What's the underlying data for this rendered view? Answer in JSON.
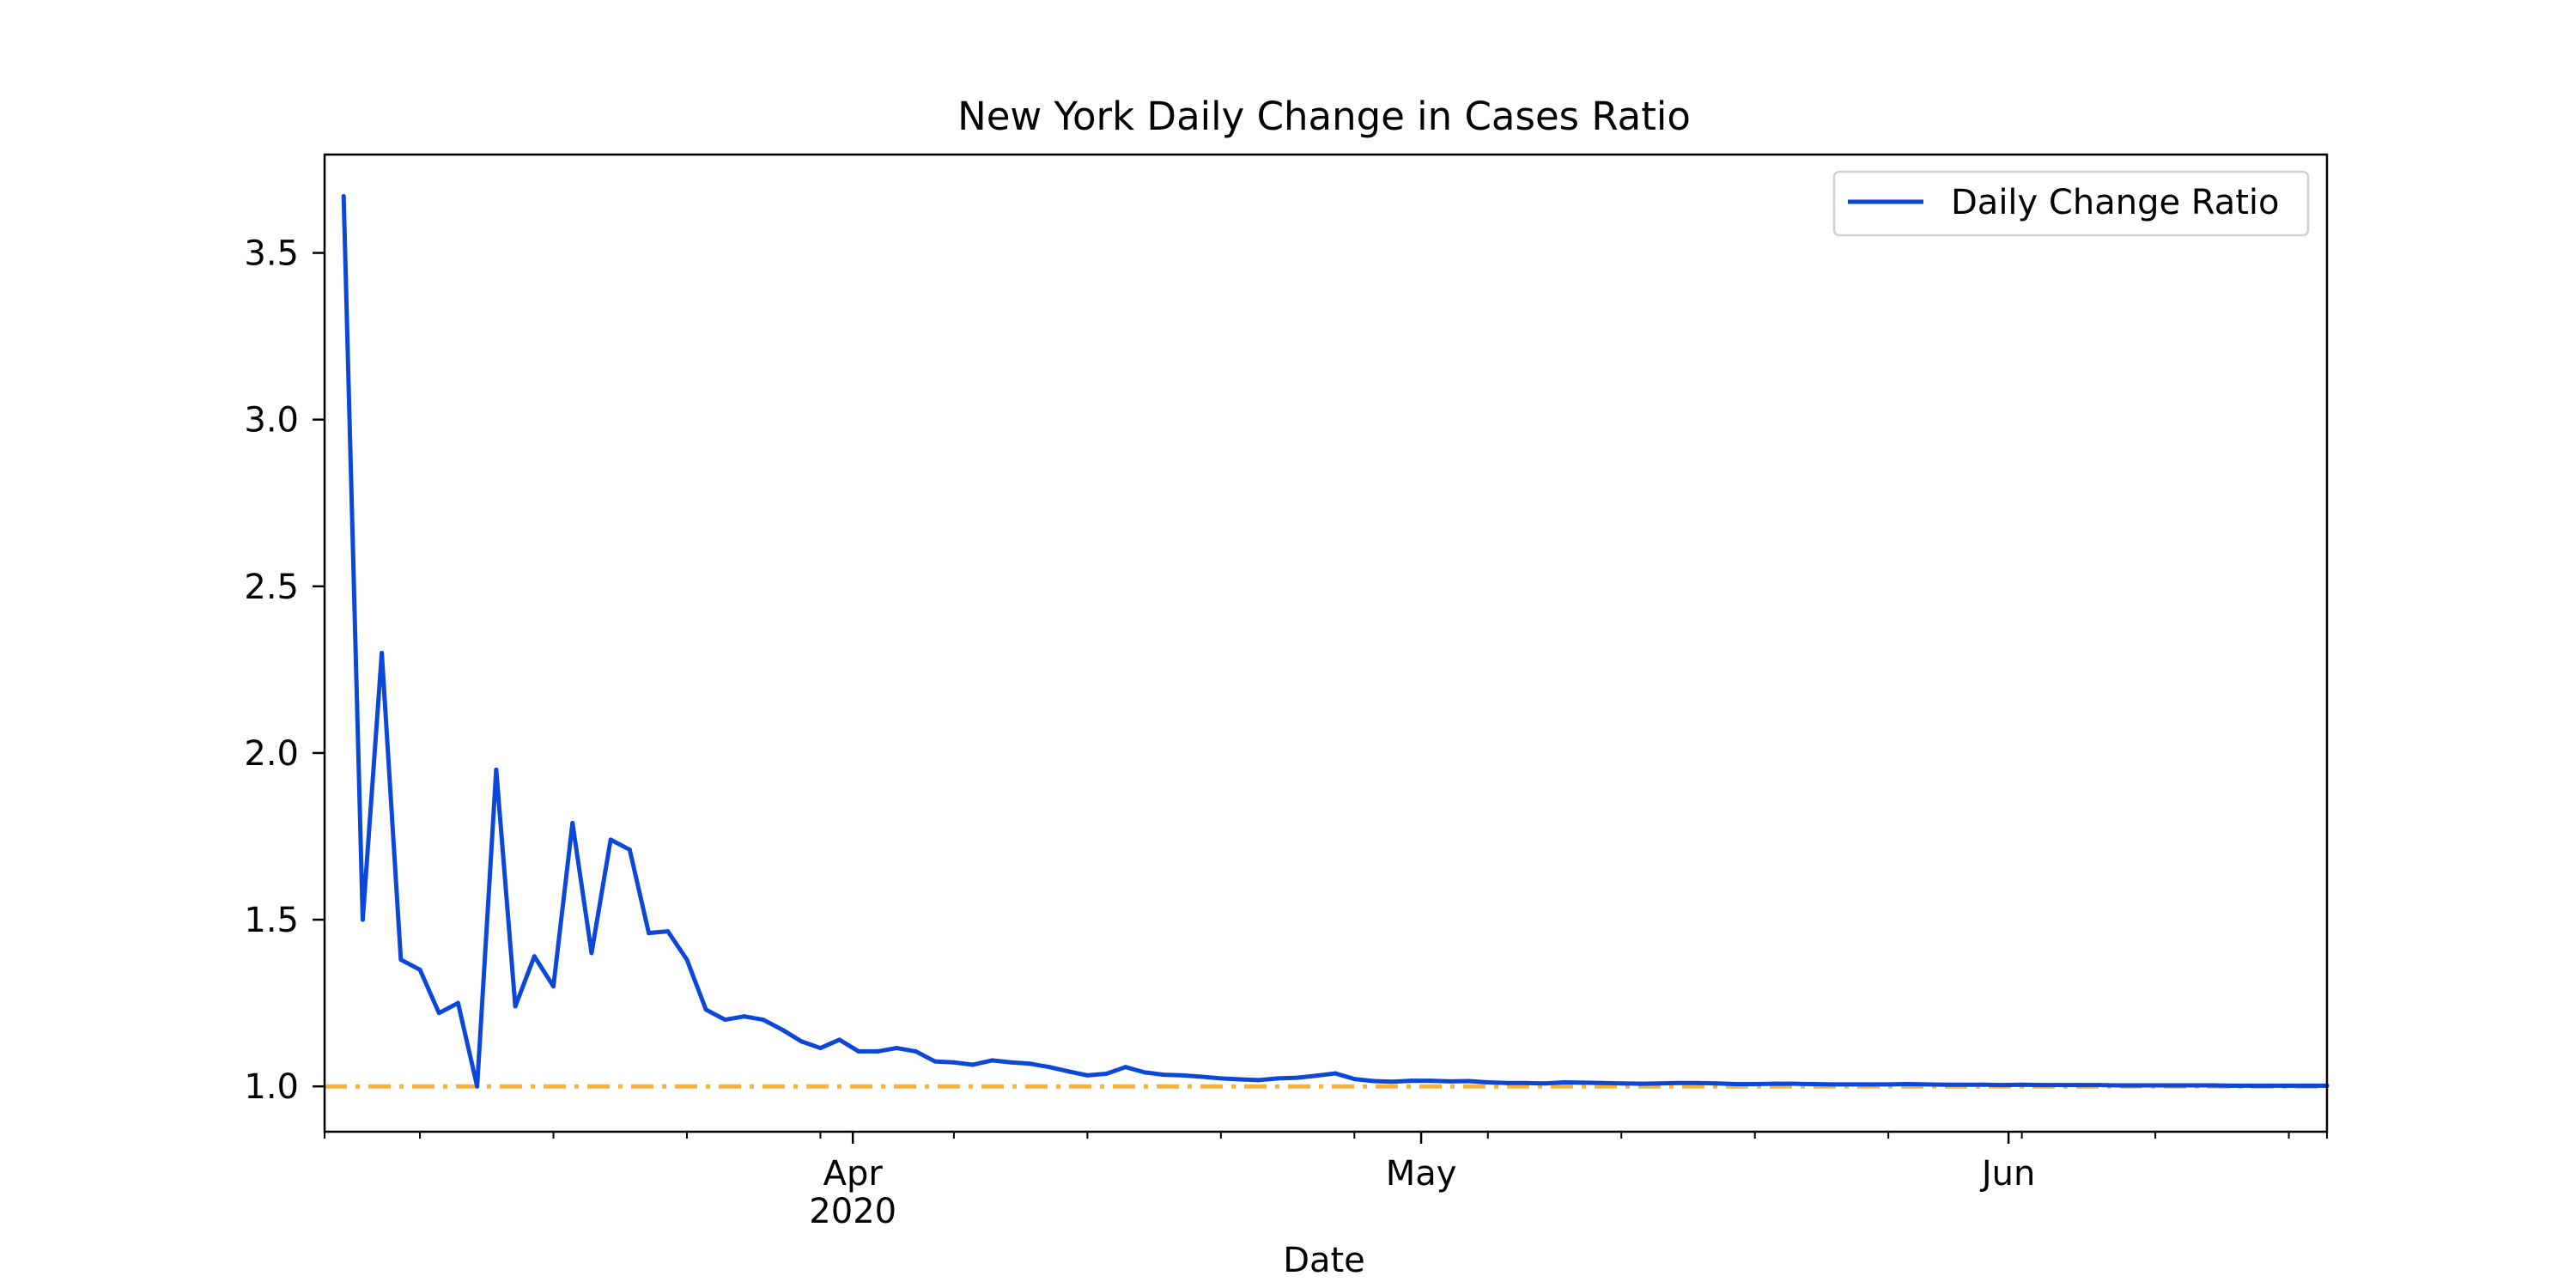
{
  "chart_data": {
    "type": "line",
    "title": "New York Daily Change in Cases Ratio",
    "xlabel": "Date",
    "ylabel": "",
    "xlim": [
      -1,
      104
    ],
    "ylim": [
      0.864,
      3.795
    ],
    "y_ticks": [
      1.0,
      1.5,
      2.0,
      2.5,
      3.0,
      3.5
    ],
    "y_tick_labels": [
      "1.0",
      "1.5",
      "2.0",
      "2.5",
      "3.0",
      "3.5"
    ],
    "x_major_ticks": [
      {
        "day": 26.7,
        "label": "Apr",
        "sublabel": "2020"
      },
      {
        "day": 56.5,
        "label": "May",
        "sublabel": ""
      },
      {
        "day": 87.3,
        "label": "Jun",
        "sublabel": ""
      }
    ],
    "x_minor_ticks": [
      -1,
      4,
      11,
      18,
      25,
      32,
      39,
      46,
      53,
      60,
      67,
      74,
      81,
      88,
      95,
      102,
      104
    ],
    "legend": {
      "position": "top-right",
      "entries": [
        "Daily Change Ratio"
      ]
    },
    "series": [
      {
        "name": "Daily Change Ratio",
        "color": "#0b47d8",
        "start_day": 0,
        "values": [
          3.67,
          1.5,
          2.3,
          1.38,
          1.35,
          1.22,
          1.25,
          1.0,
          1.95,
          1.24,
          1.39,
          1.3,
          1.79,
          1.4,
          1.74,
          1.71,
          1.46,
          1.465,
          1.38,
          1.23,
          1.2,
          1.21,
          1.2,
          1.17,
          1.135,
          1.115,
          1.14,
          1.105,
          1.105,
          1.115,
          1.105,
          1.075,
          1.072,
          1.065,
          1.078,
          1.072,
          1.068,
          1.058,
          1.045,
          1.033,
          1.038,
          1.058,
          1.042,
          1.035,
          1.033,
          1.029,
          1.024,
          1.021,
          1.019,
          1.024,
          1.026,
          1.032,
          1.039,
          1.022,
          1.016,
          1.014,
          1.017,
          1.017,
          1.015,
          1.016,
          1.012,
          1.01,
          1.01,
          1.009,
          1.012,
          1.011,
          1.01,
          1.009,
          1.008,
          1.009,
          1.01,
          1.01,
          1.009,
          1.007,
          1.007,
          1.008,
          1.008,
          1.007,
          1.006,
          1.006,
          1.006,
          1.006,
          1.007,
          1.006,
          1.005,
          1.005,
          1.005,
          1.004,
          1.005,
          1.004,
          1.004,
          1.004,
          1.004,
          1.003,
          1.003,
          1.003,
          1.003,
          1.003,
          1.003,
          1.002,
          1.002,
          1.002,
          1.002,
          1.002,
          1.002
        ]
      }
    ],
    "reference_line": {
      "y": 1.0,
      "color": "#f9b233",
      "style": "dash-dot"
    }
  }
}
